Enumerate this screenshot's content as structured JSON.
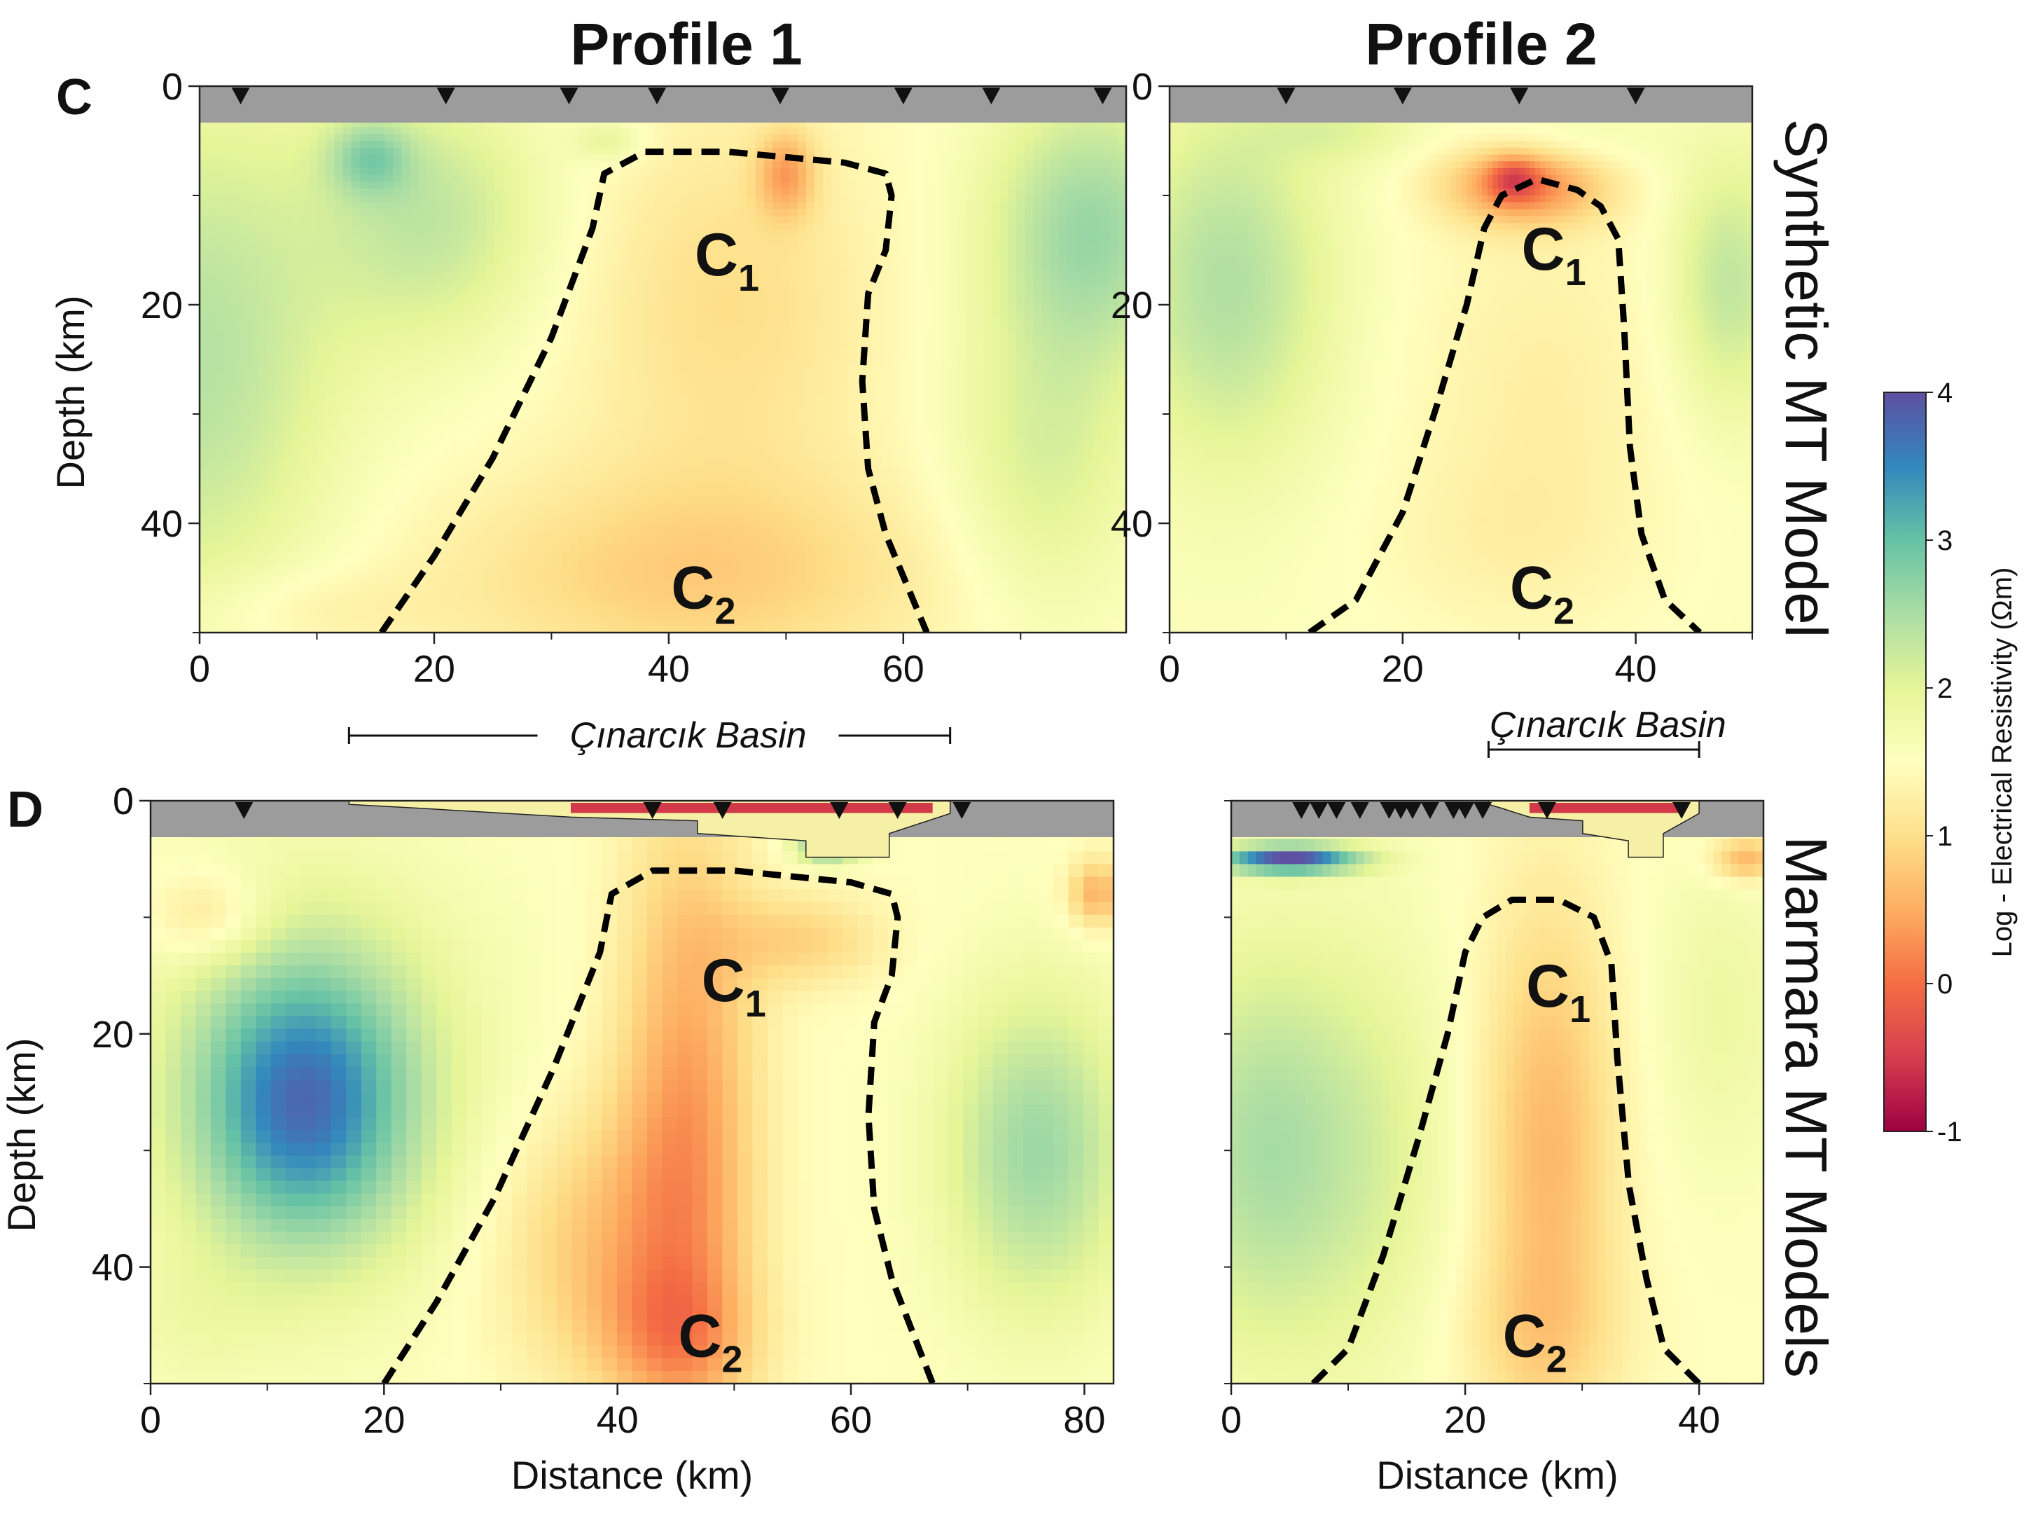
{
  "figure": {
    "column_titles": [
      "Profile 1",
      "Profile 2"
    ],
    "panel_letters": [
      "C",
      "D"
    ],
    "row_labels": [
      "Synthetic MT Model",
      "Marmara MT Models"
    ],
    "region_labels": [
      {
        "main": "C",
        "sub": "1"
      },
      {
        "main": "C",
        "sub": "2"
      }
    ],
    "basin_label": "Çınarcık Basin",
    "colors": {
      "dashed_outline": "#000000",
      "surface_band": "#9c9c9c",
      "basin_fill_yellow": "#f6f0a6",
      "basin_fill_red": "#d23a4a"
    }
  },
  "colorbar": {
    "label": "Log - Electrical Resistivity (Ωm)",
    "ticks": [
      "-1",
      "0",
      "1",
      "2",
      "3",
      "4"
    ],
    "range": [
      -1,
      4
    ],
    "colormap": "Spectral",
    "stops": [
      "#9e0142",
      "#d53e4f",
      "#f46d43",
      "#fdae61",
      "#fee08b",
      "#ffffbf",
      "#e6f598",
      "#abdda4",
      "#66c2a5",
      "#3288bd",
      "#5e4fa2"
    ]
  },
  "chart_data": [
    {
      "type": "heatmap",
      "panel": "C",
      "title": "Profile 1",
      "row_label": "Synthetic MT Model",
      "xlabel": "",
      "ylabel": "Depth (km)",
      "xlim": [
        0,
        79
      ],
      "ylim": [
        50,
        0
      ],
      "xticks": [
        0,
        20,
        40,
        60
      ],
      "xticks_minor": [
        10,
        30,
        50,
        70
      ],
      "yticks": [
        0,
        20,
        40
      ],
      "yticks_minor": [
        10,
        30,
        50
      ],
      "stations_km": [
        3.5,
        21,
        31.5,
        39,
        49.5,
        60,
        67.5,
        77
      ],
      "boundary": {
        "x": [
          15.5,
          20,
          25,
          30,
          33.5,
          34.5,
          38,
          45,
          55,
          58.5,
          59,
          58.5,
          57,
          56.5,
          57,
          58.5,
          62
        ],
        "y": [
          50,
          43,
          34,
          23,
          13,
          8,
          6,
          6,
          7,
          8,
          10,
          15,
          19,
          27,
          35,
          41,
          50
        ]
      },
      "regions": [
        {
          "label": "C1",
          "x": 44,
          "y": 15.5
        },
        {
          "label": "C2",
          "x": 42,
          "y": 46
        }
      ],
      "blobs": [
        {
          "x": 0,
          "y": 25,
          "sx": 12,
          "sy": 25,
          "v": 0.9
        },
        {
          "x": 20,
          "y": 12,
          "sx": 10,
          "sy": 12,
          "v": 0.8
        },
        {
          "x": 14.5,
          "y": 6.5,
          "sx": 3.5,
          "sy": 3.5,
          "v": 0.8
        },
        {
          "x": 76,
          "y": 13,
          "sx": 9,
          "sy": 13,
          "v": 1.1
        },
        {
          "x": 72,
          "y": 35,
          "sx": 8,
          "sy": 14,
          "v": 0.6
        },
        {
          "x": 35,
          "y": 5,
          "sx": 3,
          "sy": 2,
          "v": 0.5
        },
        {
          "x": 45,
          "y": 20,
          "sx": 13,
          "sy": 18,
          "v": -0.5
        },
        {
          "x": 42,
          "y": 45,
          "sx": 22,
          "sy": 10,
          "v": -0.65
        },
        {
          "x": 50,
          "y": 8,
          "sx": 2.5,
          "sy": 4,
          "v": -0.9
        },
        {
          "x": 8,
          "y": 48,
          "sx": 10,
          "sy": 4,
          "v": -0.3
        }
      ],
      "blob_base": 1.5
    },
    {
      "type": "heatmap",
      "panel": "C",
      "title": "Profile 2",
      "row_label": "Synthetic MT Model",
      "xlabel": "",
      "ylabel": "",
      "xlim": [
        0,
        50
      ],
      "ylim": [
        50,
        0
      ],
      "xticks": [
        0,
        20,
        40
      ],
      "xticks_minor": [
        10,
        30,
        50
      ],
      "yticks": [
        0,
        20,
        40
      ],
      "yticks_minor": [
        10,
        30,
        50
      ],
      "stations_km": [
        10,
        20,
        30,
        40
      ],
      "boundary": {
        "x": [
          12,
          16,
          20,
          23,
          25.5,
          27,
          28.5,
          31.5,
          35,
          37,
          38.5,
          39,
          39.5,
          40.5,
          42.5,
          45.5
        ],
        "y": [
          50,
          47,
          39,
          29,
          20,
          13,
          10,
          8.5,
          9.5,
          11,
          14,
          22,
          33,
          41,
          47,
          50
        ]
      },
      "regions": [
        {
          "label": "C1",
          "x": 32,
          "y": 15
        },
        {
          "label": "C2",
          "x": 31,
          "y": 46
        }
      ],
      "blobs": [
        {
          "x": 5,
          "y": 18,
          "sx": 9,
          "sy": 17,
          "v": 0.9
        },
        {
          "x": 48,
          "y": 18,
          "sx": 5,
          "sy": 12,
          "v": 0.8
        },
        {
          "x": 15,
          "y": 4,
          "sx": 7,
          "sy": 3,
          "v": 0.4
        },
        {
          "x": 34,
          "y": 5,
          "sx": 8,
          "sy": 3,
          "v": 0.3
        },
        {
          "x": 30.5,
          "y": 9,
          "sx": 7,
          "sy": 3.8,
          "v": -1.3
        },
        {
          "x": 29.5,
          "y": 8.5,
          "sx": 2.2,
          "sy": 2,
          "v": -0.8
        },
        {
          "x": 32,
          "y": 28,
          "sx": 12,
          "sy": 20,
          "v": -0.3
        },
        {
          "x": 28,
          "y": 42,
          "sx": 12,
          "sy": 8,
          "v": -0.15
        }
      ],
      "blob_base": 1.55
    },
    {
      "type": "heatmap",
      "panel": "D",
      "title": "",
      "row_label": "Marmara MT Models",
      "xlabel": "Distance (km)",
      "ylabel": "Depth (km)",
      "xlim": [
        0,
        82.5
      ],
      "ylim": [
        50,
        0
      ],
      "xticks": [
        0,
        20,
        40,
        60,
        80
      ],
      "xticks_minor": [
        10,
        30,
        50,
        70
      ],
      "yticks": [
        0,
        20,
        40
      ],
      "yticks_minor": [
        10,
        30,
        50
      ],
      "stations_km": [
        8,
        43,
        49,
        59,
        64,
        69.5
      ],
      "basin_bar_km": [
        17,
        68.5
      ],
      "basin_red_km": [
        36,
        67
      ],
      "boundary": {
        "x": [
          20,
          24.5,
          29.5,
          34.5,
          38.5,
          39.5,
          43,
          50,
          60,
          63.5,
          64,
          63.5,
          62,
          61.5,
          62,
          63.5,
          67
        ],
        "y": [
          50,
          43,
          34,
          23,
          13,
          8,
          6,
          6,
          7,
          8,
          10,
          15,
          19,
          27,
          35,
          41,
          50
        ]
      },
      "regions": [
        {
          "label": "C1",
          "x": 49,
          "y": 15.5
        },
        {
          "label": "C2",
          "x": 47,
          "y": 46
        }
      ],
      "pixelated": true,
      "blobs": [
        {
          "x": 13,
          "y": 26,
          "sx": 9,
          "sy": 12,
          "v": 1.6
        },
        {
          "x": 14,
          "y": 24,
          "sx": 15,
          "sy": 18,
          "v": 0.7
        },
        {
          "x": 76,
          "y": 30,
          "sx": 8,
          "sy": 14,
          "v": 1.1
        },
        {
          "x": 3,
          "y": 45,
          "sx": 7,
          "sy": 6,
          "v": 0.2
        },
        {
          "x": 5,
          "y": 10,
          "sx": 5,
          "sy": 4,
          "v": -0.6
        },
        {
          "x": 58,
          "y": 4,
          "sx": 3,
          "sy": 1.5,
          "v": 1.3
        },
        {
          "x": 46,
          "y": 28,
          "sx": 6,
          "sy": 28,
          "v": -1.1
        },
        {
          "x": 45,
          "y": 46,
          "sx": 7,
          "sy": 6,
          "v": -0.6
        },
        {
          "x": 56,
          "y": 12,
          "sx": 7,
          "sy": 4,
          "v": -0.6
        },
        {
          "x": 38,
          "y": 38,
          "sx": 9,
          "sy": 12,
          "v": -0.7
        },
        {
          "x": 81,
          "y": 8,
          "sx": 2.5,
          "sy": 3,
          "v": -1.0
        }
      ],
      "blob_base": 1.5
    },
    {
      "type": "heatmap",
      "panel": "D",
      "title": "",
      "row_label": "Marmara MT Models",
      "xlabel": "Distance (km)",
      "ylabel": "",
      "xlim": [
        0,
        45.5
      ],
      "ylim": [
        50,
        0
      ],
      "xticks": [
        0,
        20,
        40
      ],
      "xticks_minor": [
        10,
        30
      ],
      "yticks": [],
      "yticks_minor": [
        0,
        10,
        20,
        30,
        40,
        50
      ],
      "stations_km": [
        6,
        7.5,
        9,
        11,
        13.5,
        14.5,
        15.5,
        17,
        19,
        20,
        21.5,
        27,
        38.5
      ],
      "basin_bar_km": [
        22,
        40
      ],
      "basin_red_km": [
        25.5,
        38.5
      ],
      "boundary": {
        "x": [
          7,
          10,
          13,
          16,
          18.5,
          20,
          21.5,
          24,
          28,
          31,
          32.5,
          33,
          34,
          35.5,
          37,
          40
        ],
        "y": [
          50,
          47,
          39,
          29,
          20,
          13,
          10,
          8.5,
          8.5,
          10,
          14,
          22,
          33,
          41,
          47,
          50
        ]
      },
      "regions": [
        {
          "label": "C1",
          "x": 27,
          "y": 16
        },
        {
          "label": "C2",
          "x": 25,
          "y": 46
        }
      ],
      "pixelated": true,
      "blobs": [
        {
          "x": 5,
          "y": 5,
          "sx": 6,
          "sy": 1.2,
          "v": 2.4
        },
        {
          "x": 2,
          "y": 30,
          "sx": 8,
          "sy": 18,
          "v": 0.9
        },
        {
          "x": 12,
          "y": 30,
          "sx": 8,
          "sy": 20,
          "v": 0.5
        },
        {
          "x": 42,
          "y": 18,
          "sx": 6,
          "sy": 14,
          "v": 0.35
        },
        {
          "x": 27,
          "y": 30,
          "sx": 6,
          "sy": 22,
          "v": -0.9
        },
        {
          "x": 26,
          "y": 46,
          "sx": 8,
          "sy": 7,
          "v": -0.3
        },
        {
          "x": 44,
          "y": 5,
          "sx": 3,
          "sy": 2,
          "v": -1.0
        }
      ],
      "blob_base": 1.5
    }
  ]
}
